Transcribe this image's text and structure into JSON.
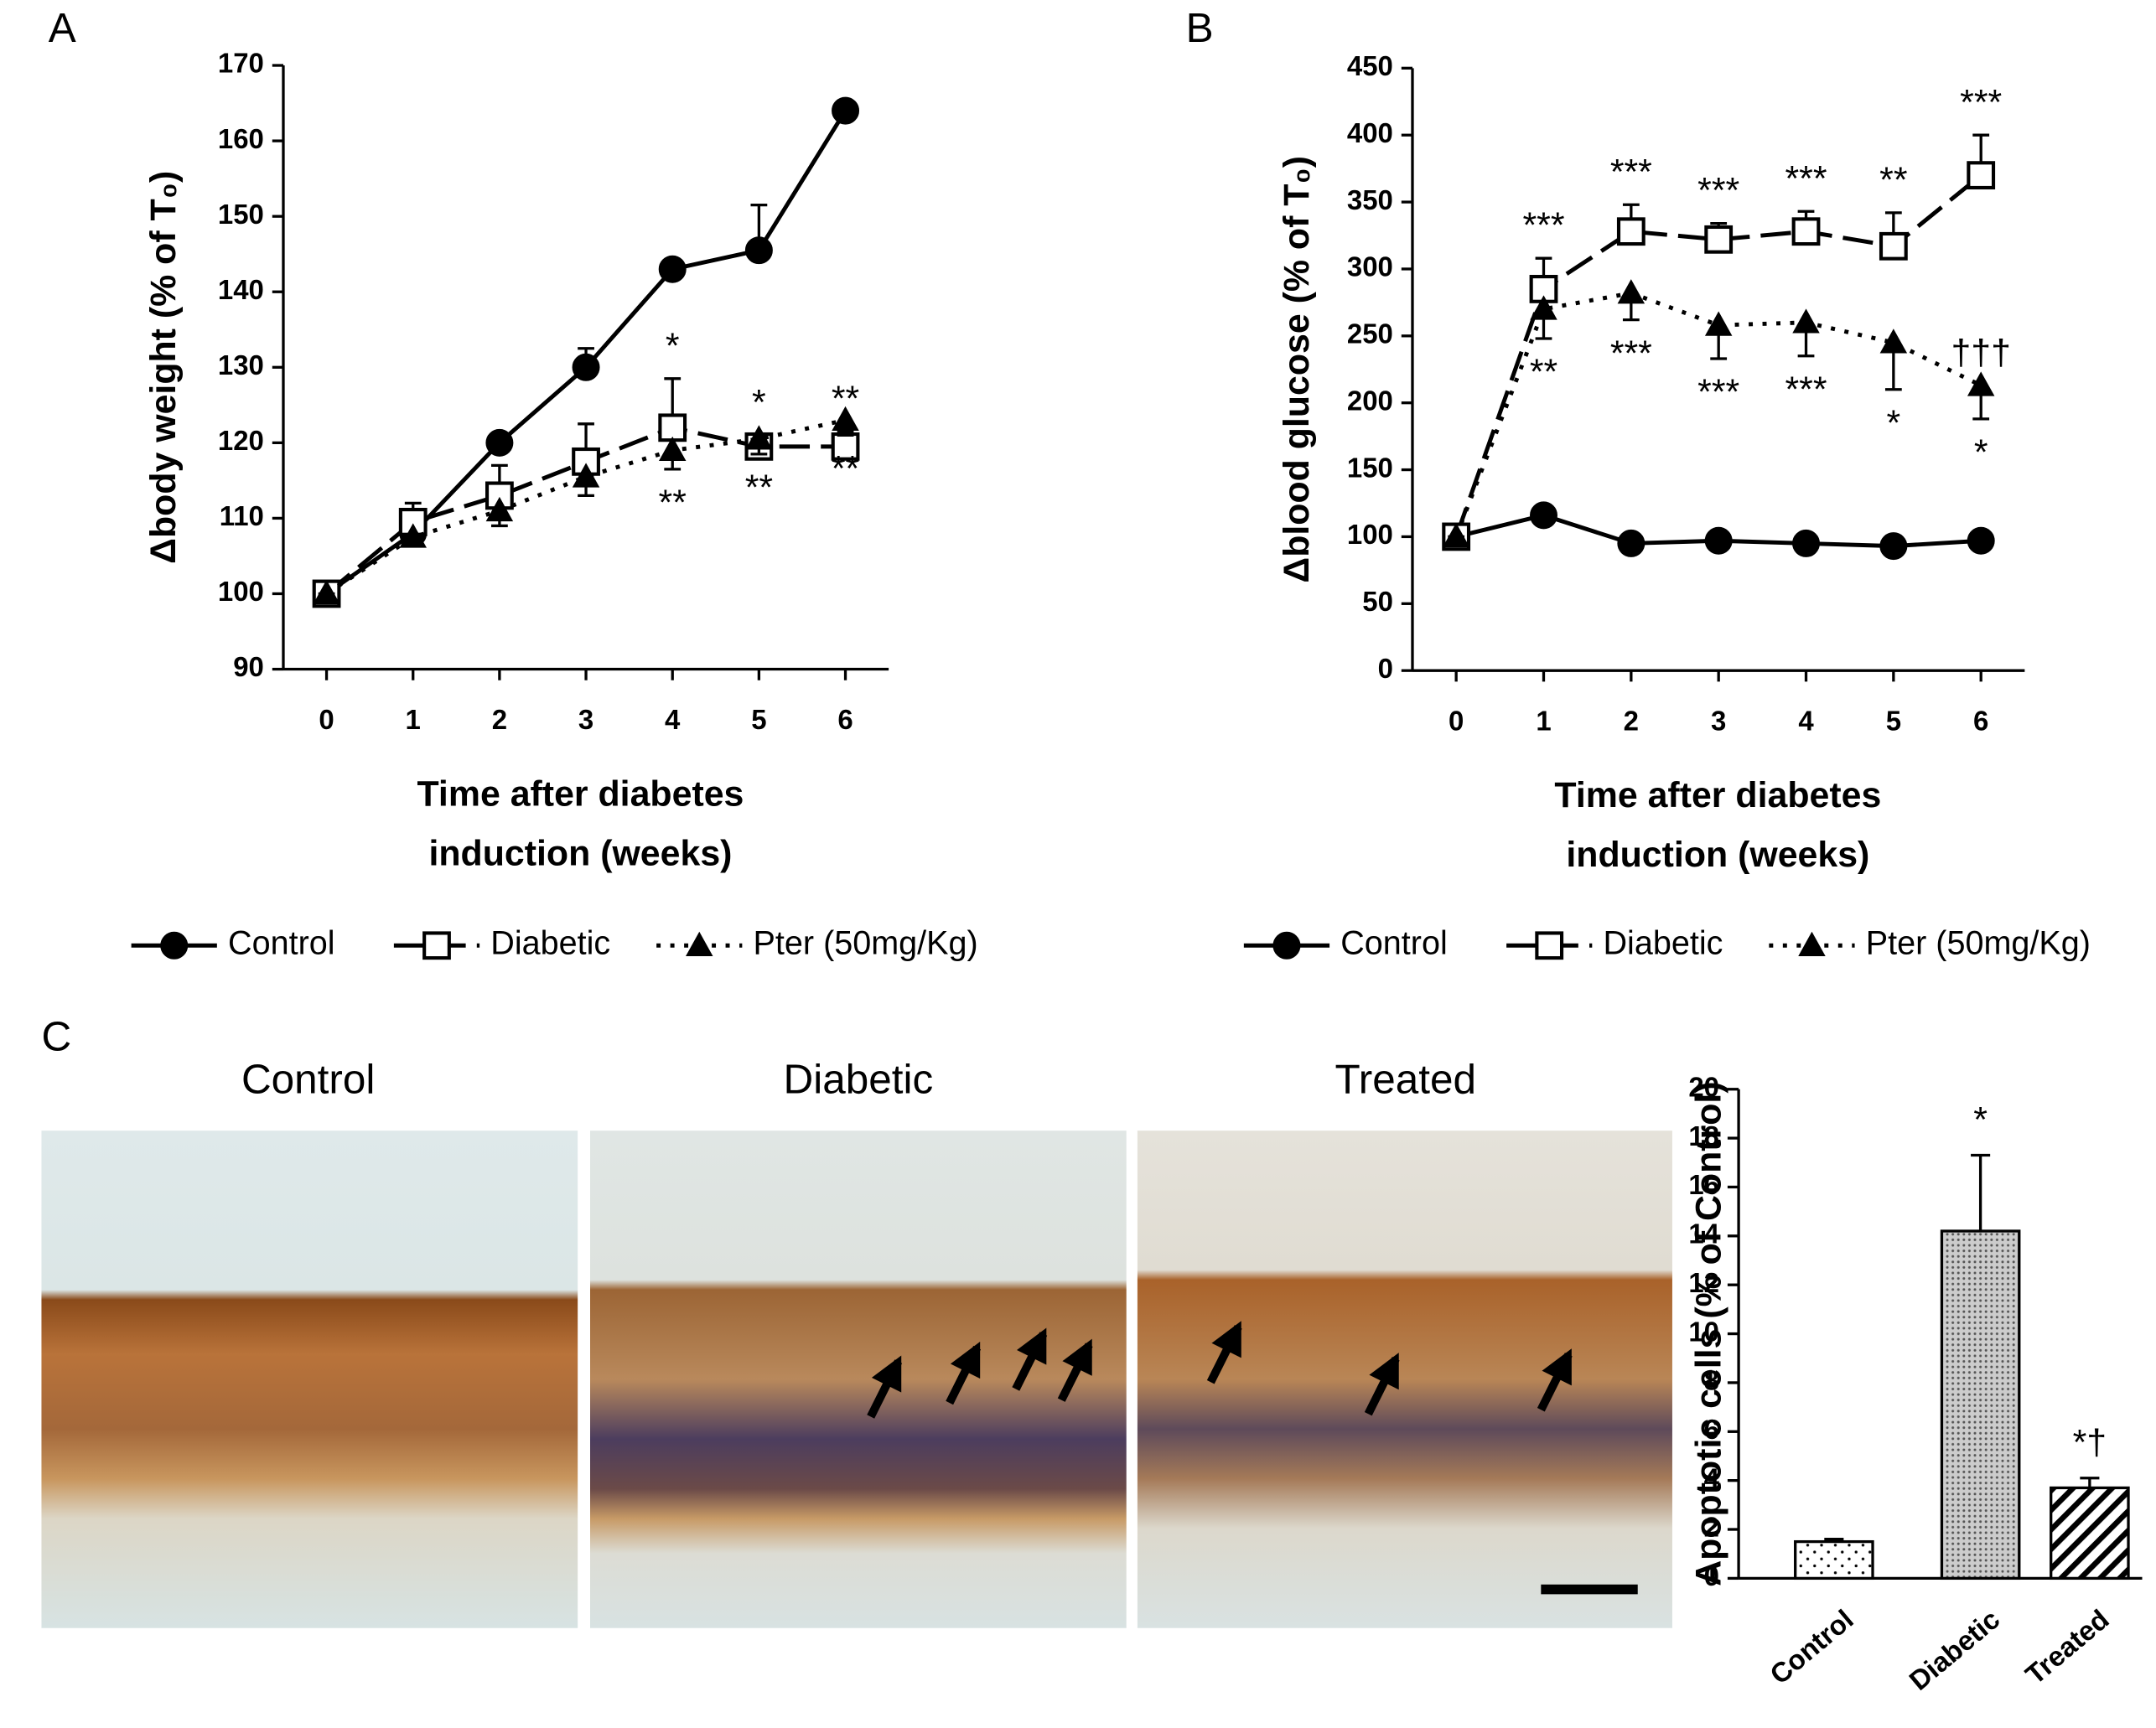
{
  "chart_data": [
    {
      "type": "line",
      "panel_label": "A",
      "ylabel": "Δbody weight (% of T₀)",
      "xlabel": [
        "Time after diabetes",
        "induction (weeks)"
      ],
      "x": [
        0,
        1,
        2,
        3,
        4,
        5,
        6
      ],
      "xlim": [
        -0.5,
        6.5
      ],
      "xticks": [
        0,
        1,
        2,
        3,
        4,
        5,
        6
      ],
      "ylim": [
        90,
        170
      ],
      "yticks": [
        90,
        100,
        110,
        120,
        130,
        140,
        150,
        160,
        170
      ],
      "series": [
        {
          "name": "Control",
          "color": "#000000",
          "dash": "solid",
          "marker": "circle",
          "marker_fill": "#000000",
          "values": [
            100,
            108,
            120,
            130,
            143,
            145.5,
            164
          ],
          "errors": [
            0,
            1,
            1,
            2.5,
            1,
            6,
            1
          ],
          "error_direction": "up"
        },
        {
          "name": "Diabetic",
          "color": "#000000",
          "dash": "dashed",
          "marker": "square",
          "marker_fill": "#ffffff",
          "values": [
            100,
            109.5,
            113,
            117.5,
            122,
            119.5,
            119.5
          ],
          "errors": [
            0,
            2.5,
            4,
            5,
            6.5,
            1.5,
            2
          ],
          "error_direction": "up",
          "annotations_above": [
            null,
            null,
            null,
            null,
            "*",
            "*",
            "**"
          ]
        },
        {
          "name": "Pter (50mg/Kg)",
          "color": "#000000",
          "dash": "dotted",
          "marker": "triangle",
          "marker_fill": "#000000",
          "values": [
            100,
            107.5,
            111,
            115.5,
            119,
            120.5,
            123
          ],
          "errors": [
            0,
            1,
            2,
            2.5,
            2.5,
            2,
            2
          ],
          "error_direction": "down",
          "annotations_below": [
            null,
            null,
            null,
            null,
            "**",
            "**",
            "**"
          ]
        }
      ]
    },
    {
      "type": "line",
      "panel_label": "B",
      "ylabel": "Δblood glucose  (% of T₀)",
      "xlabel": [
        "Time after diabetes",
        "induction (weeks)"
      ],
      "x": [
        0,
        1,
        2,
        3,
        4,
        5,
        6
      ],
      "xlim": [
        -0.5,
        6.5
      ],
      "xticks": [
        0,
        1,
        2,
        3,
        4,
        5,
        6
      ],
      "ylim": [
        0,
        450
      ],
      "yticks": [
        0,
        50,
        100,
        150,
        200,
        250,
        300,
        350,
        400,
        450
      ],
      "series": [
        {
          "name": "Control",
          "color": "#000000",
          "dash": "solid",
          "marker": "circle",
          "marker_fill": "#000000",
          "values": [
            100,
            116,
            95,
            97,
            95,
            93,
            97
          ],
          "errors": [
            0,
            3,
            3,
            3,
            3,
            3,
            3
          ],
          "error_direction": "up"
        },
        {
          "name": "Diabetic",
          "color": "#000000",
          "dash": "dashed",
          "marker": "square",
          "marker_fill": "#ffffff",
          "values": [
            100,
            285,
            328,
            322,
            328,
            317,
            370
          ],
          "errors": [
            0,
            23,
            20,
            12,
            15,
            25,
            30
          ],
          "error_direction": "up",
          "annotations_above": [
            null,
            "***",
            "***",
            "***",
            "***",
            "**",
            "***"
          ]
        },
        {
          "name": "Pter (50mg/Kg)",
          "color": "#000000",
          "dash": "dotted",
          "marker": "triangle",
          "marker_fill": "#000000",
          "values": [
            100,
            270,
            282,
            258,
            260,
            245,
            213
          ],
          "errors": [
            0,
            22,
            20,
            25,
            25,
            35,
            25
          ],
          "error_direction": "down",
          "annotations_below": [
            null,
            "**",
            "***",
            "***",
            "***",
            "*",
            "*"
          ],
          "annotations_above": [
            null,
            null,
            null,
            null,
            null,
            null,
            "†††"
          ]
        }
      ]
    },
    {
      "type": "bar",
      "ylabel": "Apoptotic cells (% of Control)",
      "categories": [
        "Control",
        "Diabetic",
        "Treated"
      ],
      "values": [
        1.5,
        14.2,
        3.7
      ],
      "errors": [
        0.1,
        3.1,
        0.4
      ],
      "annotations": [
        null,
        "*",
        "*†"
      ],
      "patterns": [
        "sparse-dots",
        "dense-dots",
        "hatch"
      ],
      "ylim": [
        0,
        20
      ],
      "yticks": [
        0,
        2,
        4,
        6,
        8,
        10,
        12,
        14,
        16,
        18,
        20
      ]
    }
  ],
  "micrographs": {
    "panel_label": "C",
    "titles": [
      "Control",
      "Diabetic",
      "Treated"
    ]
  }
}
